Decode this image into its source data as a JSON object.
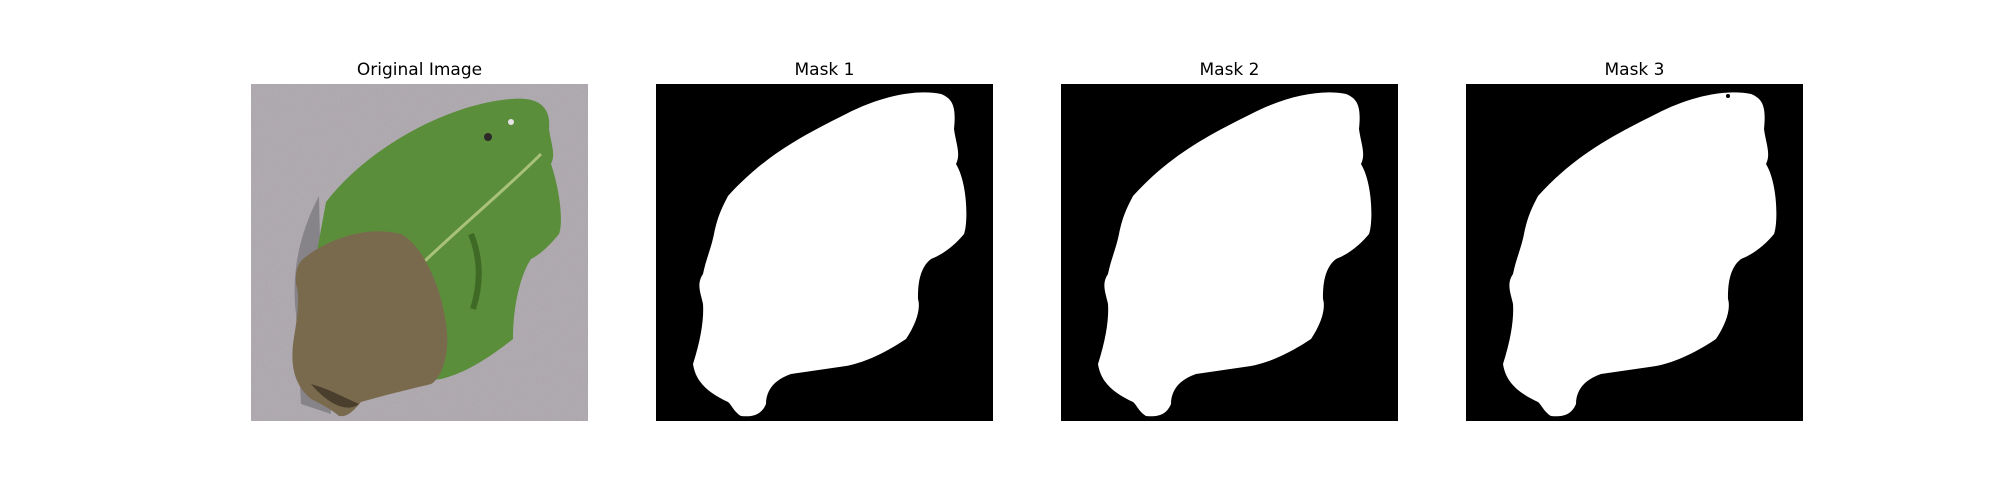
{
  "figure": {
    "panels": [
      {
        "title": "Original Image"
      },
      {
        "title": "Mask 1"
      },
      {
        "title": "Mask 2"
      },
      {
        "title": "Mask 3"
      }
    ]
  },
  "colors": {
    "background": "#b3aeb4",
    "leaf": "#5b8e3b",
    "leaf_light": "#78a552",
    "blight": "#7a6a4d",
    "blight_dark": "#4a3f2c",
    "mask_fg": "#ffffff",
    "mask_bg": "#000000"
  }
}
